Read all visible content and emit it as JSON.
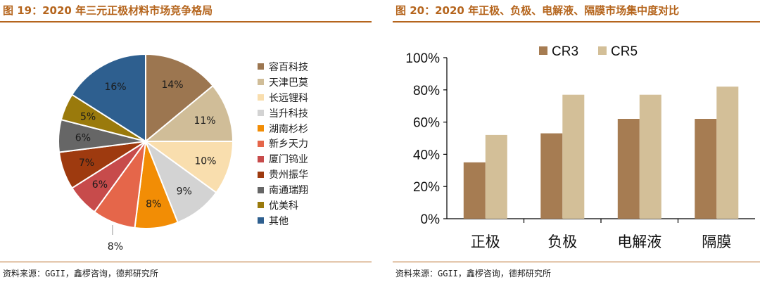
{
  "left_panel": {
    "title": "图 19：2020 年三元正极材料市场竞争格局",
    "source": "资料来源：GGII，鑫椤咨询，德邦研究所"
  },
  "right_panel": {
    "title": "图 20：2020 年正极、负极、电解液、隔膜市场集中度对比",
    "source": "资料来源：GGII，鑫椤咨询，德邦研究所"
  },
  "chart_data": [
    {
      "type": "pie",
      "title": "2020 年三元正极材料市场竞争格局",
      "slices": [
        {
          "label": "容百科技",
          "value": 14,
          "display": "14%",
          "color": "#9c7650"
        },
        {
          "label": "天津巴莫",
          "value": 11,
          "display": "11%",
          "color": "#d0bd98"
        },
        {
          "label": "长远锂科",
          "value": 10,
          "display": "10%",
          "color": "#f9deae"
        },
        {
          "label": "当升科技",
          "value": 9,
          "display": "9%",
          "color": "#d3d3d3"
        },
        {
          "label": "湖南杉杉",
          "value": 8,
          "display": "8%",
          "color": "#f28d05"
        },
        {
          "label": "新乡天力",
          "value": 8,
          "display": "8%",
          "color": "#e5664a"
        },
        {
          "label": "厦门钨业",
          "value": 6,
          "display": "6%",
          "color": "#c74b4b"
        },
        {
          "label": "贵州振华",
          "value": 7,
          "display": "7%",
          "color": "#9e3a0f"
        },
        {
          "label": "南通瑞翔",
          "value": 6,
          "display": "6%",
          "color": "#666666"
        },
        {
          "label": "优美科",
          "value": 5,
          "display": "5%",
          "color": "#9a7a0c"
        },
        {
          "label": "其他",
          "value": 16,
          "display": "16%",
          "color": "#2e5f8f"
        }
      ],
      "legend_position": "right"
    },
    {
      "type": "bar",
      "title": "2020 年正极、负极、电解液、隔膜市场集中度对比",
      "categories": [
        "正极",
        "负极",
        "电解液",
        "隔膜"
      ],
      "series": [
        {
          "name": "CR3",
          "values": [
            35,
            53,
            62,
            62
          ],
          "color": "#a67c52"
        },
        {
          "name": "CR5",
          "values": [
            52,
            77,
            77,
            82
          ],
          "color": "#d3bf98"
        }
      ],
      "ylim": [
        0,
        100
      ],
      "yticks": [
        "0%",
        "20%",
        "40%",
        "60%",
        "80%",
        "100%"
      ],
      "ytick_values": [
        0,
        20,
        40,
        60,
        80,
        100
      ],
      "grid": false,
      "legend_position": "top"
    }
  ]
}
